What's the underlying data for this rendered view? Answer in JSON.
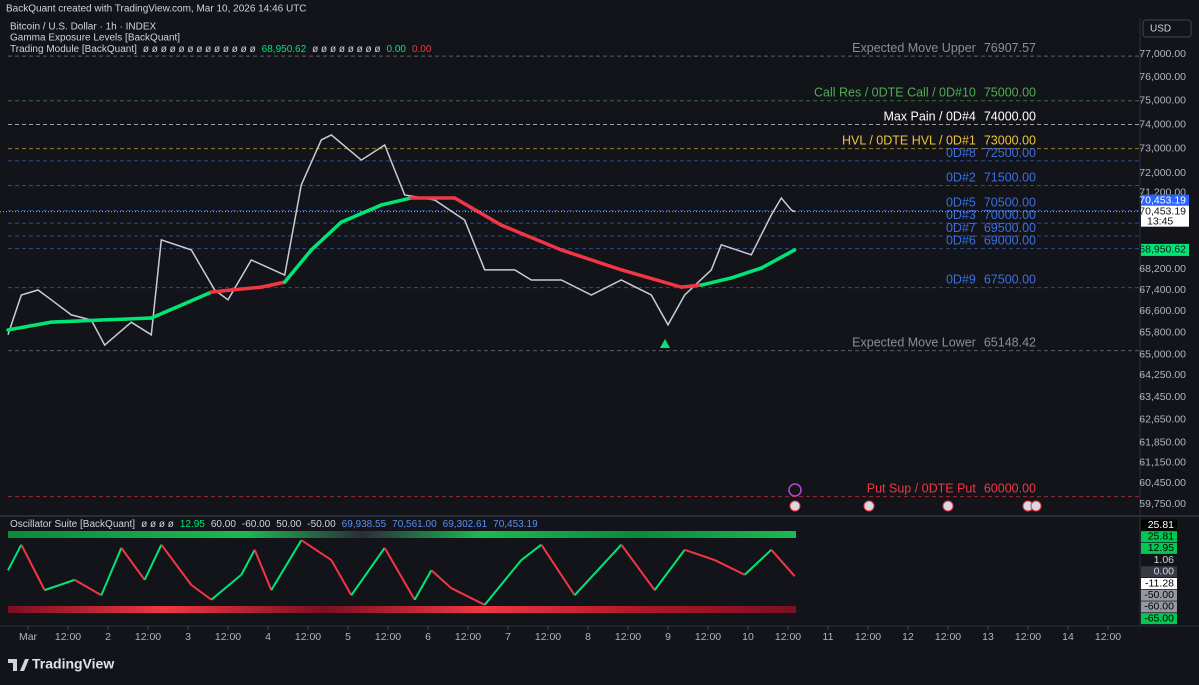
{
  "header": {
    "watermark": "BackQuant created with TradingView.com, Mar 10, 2026 14:46 UTC",
    "currency": "USD",
    "logo": "TradingView"
  },
  "legend": {
    "symbol": "Bitcoin / U.S. Dollar · 1h · INDEX",
    "indicator": "Gamma Exposure Levels [BackQuant]",
    "module": "Trading Module [BackQuant]",
    "module_items": [
      {
        "text": "ø ø ø ø ø ø ø ø ø ø ø ø ø",
        "color": "#d1d4dc"
      },
      {
        "text": "68,950.62",
        "color": "#00e676"
      },
      {
        "text": "ø ø ø ø ø ø ø ø",
        "color": "#d1d4dc"
      },
      {
        "text": "0.00",
        "color": "#00e676"
      },
      {
        "text": "0.00",
        "color": "#f23645"
      }
    ]
  },
  "chart_data": [
    {
      "type": "line",
      "log_scale": true,
      "grid": false,
      "xlim": [
        -8.4,
        333.6
      ],
      "xticks": [
        {
          "value": 0,
          "label": "Mar"
        },
        {
          "value": 12,
          "label": "12:00"
        },
        {
          "value": 24,
          "label": "2"
        },
        {
          "value": 36,
          "label": "12:00"
        },
        {
          "value": 48,
          "label": "3"
        },
        {
          "value": 60,
          "label": "12:00"
        },
        {
          "value": 72,
          "label": "4"
        },
        {
          "value": 84,
          "label": "12:00"
        },
        {
          "value": 96,
          "label": "5"
        },
        {
          "value": 108,
          "label": "12:00"
        },
        {
          "value": 120,
          "label": "6"
        },
        {
          "value": 132,
          "label": "12:00"
        },
        {
          "value": 144,
          "label": "7"
        },
        {
          "value": 156,
          "label": "12:00"
        },
        {
          "value": 168,
          "label": "8"
        },
        {
          "value": 180,
          "label": "12:00"
        },
        {
          "value": 192,
          "label": "9"
        },
        {
          "value": 204,
          "label": "12:00"
        },
        {
          "value": 216,
          "label": "10"
        },
        {
          "value": 228,
          "label": "12:00"
        },
        {
          "value": 240,
          "label": "11"
        },
        {
          "value": 252,
          "label": "12:00"
        },
        {
          "value": 264,
          "label": "12"
        },
        {
          "value": 276,
          "label": "12:00"
        },
        {
          "value": 288,
          "label": "13"
        },
        {
          "value": 300,
          "label": "12:00"
        },
        {
          "value": 312,
          "label": "14"
        },
        {
          "value": 324,
          "label": "12:00"
        }
      ],
      "ylim": [
        59382,
        78579
      ],
      "yticks": [
        {
          "value": 77000,
          "label": "77,000.00"
        },
        {
          "value": 76000,
          "label": "76,000.00"
        },
        {
          "value": 75000,
          "label": "75,000.00"
        },
        {
          "value": 74000,
          "label": "74,000.00"
        },
        {
          "value": 73000,
          "label": "73,000.00"
        },
        {
          "value": 72000,
          "label": "72,000.00"
        },
        {
          "value": 71200,
          "label": "71,200.00"
        },
        {
          "value": 68200,
          "label": "68,200.00"
        },
        {
          "value": 67400,
          "label": "67,400.00"
        },
        {
          "value": 66600,
          "label": "66,600.00"
        },
        {
          "value": 65800,
          "label": "65,800.00"
        },
        {
          "value": 65000,
          "label": "65,000.00"
        },
        {
          "value": 64250,
          "label": "64,250.00"
        },
        {
          "value": 63450,
          "label": "63,450.00"
        },
        {
          "value": 62650,
          "label": "62,650.00"
        },
        {
          "value": 61850,
          "label": "61,850.00"
        },
        {
          "value": 61150,
          "label": "61,150.00"
        },
        {
          "value": 60450,
          "label": "60,450.00"
        },
        {
          "value": 59750,
          "label": "59,750.00"
        }
      ],
      "series": [
        {
          "color": "#c8ccd6",
          "x": [
            -6,
            -2,
            3,
            7,
            13,
            19,
            23,
            31,
            37,
            40,
            49,
            56,
            60,
            67,
            77,
            82,
            88,
            91,
            100,
            107,
            113,
            122,
            131,
            137,
            146,
            151,
            160,
            169,
            178,
            187,
            192,
            197,
            205,
            208,
            217,
            223,
            226,
            229,
            230
          ],
          "values": [
            65730,
            67220,
            67410,
            67040,
            66470,
            66280,
            65350,
            66200,
            65730,
            69340,
            68950,
            67410,
            67040,
            68560,
            67980,
            71530,
            73360,
            73570,
            72530,
            73150,
            71120,
            70920,
            70120,
            68180,
            68180,
            67790,
            67790,
            67220,
            67790,
            67220,
            66100,
            67220,
            68180,
            69150,
            68760,
            70320,
            71000,
            70520,
            70453.19
          ]
        },
        {
          "x": [
            -6,
            7,
            22,
            37,
            46,
            55,
            61,
            70,
            77,
            85,
            94,
            106,
            115,
            128,
            142,
            160,
            178,
            196,
            202,
            211,
            220,
            230
          ],
          "values": [
            65910,
            66200,
            66280,
            66355,
            66840,
            67330,
            67410,
            67520,
            67710,
            68950,
            70040,
            70720,
            71000,
            71000,
            69920,
            68950,
            68180,
            67520,
            67600,
            67870,
            68250,
            68950.62
          ],
          "colors": [
            "#00e676",
            "#00e676",
            "#00e676",
            "#00e676",
            "#00e676",
            "#f23645",
            "#f23645",
            "#f23645",
            "#00e676",
            "#00e676",
            "#00e676",
            "#00e676",
            "#f23645",
            "#f23645",
            "#f23645",
            "#f23645",
            "#f23645",
            "#f23645",
            "#00e676",
            "#00e676",
            "#00e676",
            "#00e676"
          ]
        }
      ],
      "levels": [
        {
          "label": "Expected Move Upper",
          "value": 76907.57,
          "value_label": "76907.57",
          "color": "#8a8e99"
        },
        {
          "label": "Call Res / 0DTE Call / 0D#10",
          "value": 75000,
          "value_label": "75000.00",
          "color": "#4caf50"
        },
        {
          "label": "Max Pain / 0D#4",
          "value": 74000,
          "value_label": "74000.00",
          "color": "#ffffff"
        },
        {
          "label": "HVL / 0DTE HVL / 0D#1",
          "value": 73000,
          "value_label": "73000.00",
          "color": "#f0c23b"
        },
        {
          "label": "0D#8",
          "value": 72500,
          "value_label": "72500.00",
          "color": "#3b6fe0"
        },
        {
          "label": "0D#2",
          "value": 71500,
          "value_label": "71500.00",
          "color": "#3b6fe0"
        },
        {
          "label": "0D#5",
          "value": 70500,
          "value_label": "70500.00",
          "color": "#3b6fe0"
        },
        {
          "label": "0D#3",
          "value": 70000,
          "value_label": "70000.00",
          "color": "#3b6fe0"
        },
        {
          "label": "0D#7",
          "value": 69500,
          "value_label": "69500.00",
          "color": "#3b6fe0"
        },
        {
          "label": "0D#6",
          "value": 69000,
          "value_label": "69000.00",
          "color": "#3b6fe0"
        },
        {
          "label": "0D#9",
          "value": 67500,
          "value_label": "67500.00",
          "color": "#3b6fe0"
        },
        {
          "label": "Expected Move Lower",
          "value": 65148.42,
          "value_label": "65148.42",
          "color": "#8a8e99"
        },
        {
          "label": "Put Sup / 0DTE Put",
          "value": 60000,
          "value_label": "60000.00",
          "color": "#f23645"
        }
      ],
      "last_price": {
        "value": 70453.19,
        "label": "70,453.19",
        "countdown": "13:45",
        "color": "#2962ff"
      },
      "ma_price": {
        "value": 68950.62,
        "label": "68,950.62",
        "color": "#00e676"
      }
    },
    {
      "type": "line",
      "title": "Oscillator Suite [BackQuant]",
      "legend_items": [
        {
          "text": "ø ø ø ø",
          "color": "#d1d4dc"
        },
        {
          "text": "12.95",
          "color": "#00e676"
        },
        {
          "text": "60.00",
          "color": "#d1d4dc"
        },
        {
          "text": "-60.00",
          "color": "#d1d4dc"
        },
        {
          "text": "50.00",
          "color": "#d1d4dc"
        },
        {
          "text": "-50.00",
          "color": "#d1d4dc"
        },
        {
          "text": "69,938.55",
          "color": "#5b8def"
        },
        {
          "text": "70,561.00",
          "color": "#5b8def"
        },
        {
          "text": "69,302.61",
          "color": "#5b8def"
        },
        {
          "text": "70,453.19",
          "color": "#5b8def"
        }
      ],
      "ylim": [
        -87.5,
        81.25
      ],
      "x": [
        -6,
        -2,
        5,
        14,
        22,
        28,
        35,
        40,
        49,
        55,
        64,
        68,
        73,
        82,
        91,
        97,
        107,
        116,
        121,
        127,
        137,
        148,
        154,
        164,
        178,
        188,
        197,
        206,
        215,
        223,
        230
      ],
      "values": [
        -2,
        38,
        -33,
        -17,
        -41,
        33,
        -17,
        38,
        -25,
        -48,
        -9,
        30,
        -33,
        45,
        14,
        -41,
        33,
        -48,
        -2,
        -30,
        -56,
        14,
        38,
        -41,
        38,
        -33,
        30,
        14,
        -9,
        30,
        -11.28
      ],
      "up_color": "#00e676",
      "down_color": "#f23645",
      "axis_labels": [
        {
          "value": 25.81,
          "label": "25.81",
          "bg": "#000000",
          "fg": "#ffffff"
        },
        {
          "value": 25.81,
          "label": "25.81",
          "bg": "#00c853",
          "fg": "#000000"
        },
        {
          "value": 12.95,
          "label": "12.95",
          "bg": "#00c853",
          "fg": "#000000"
        },
        {
          "value": 1.06,
          "label": "1.06",
          "bg": "#131419",
          "fg": "#d1d4dc"
        },
        {
          "value": 0,
          "label": "0.00",
          "bg": "#363a45",
          "fg": "#d1d4dc"
        },
        {
          "value": -11.28,
          "label": "-11.28",
          "bg": "#ffffff",
          "fg": "#000000"
        },
        {
          "value": -50,
          "label": "-50.00",
          "bg": "#9598a1",
          "fg": "#000000"
        },
        {
          "value": -60,
          "label": "-60.00",
          "bg": "#9598a1",
          "fg": "#000000"
        },
        {
          "value": -65,
          "label": "-65.00",
          "bg": "#00c853",
          "fg": "#000000"
        }
      ]
    }
  ]
}
